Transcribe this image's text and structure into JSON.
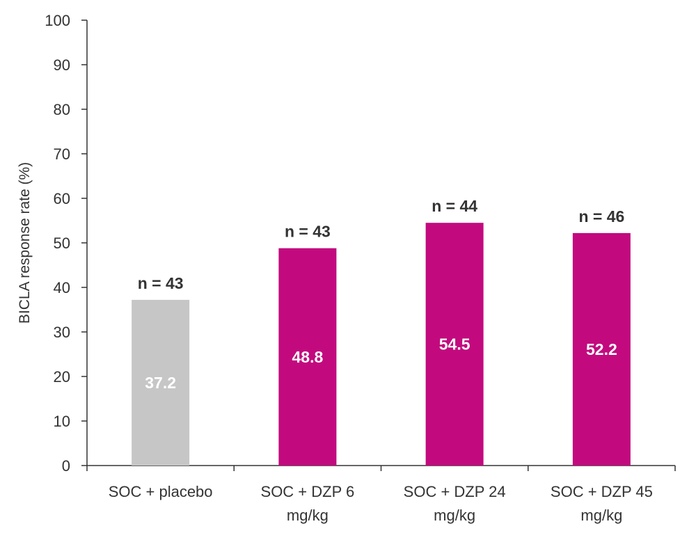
{
  "chart_data": {
    "type": "bar",
    "title": "",
    "xlabel": "",
    "ylabel": "BICLA response rate (%)",
    "ylim": [
      0,
      100
    ],
    "yticks": [
      0,
      10,
      20,
      30,
      40,
      50,
      60,
      70,
      80,
      90,
      100
    ],
    "grid": false,
    "categories": [
      [
        "SOC + placebo"
      ],
      [
        "SOC + DZP 6",
        "mg/kg"
      ],
      [
        "SOC + DZP 24",
        "mg/kg"
      ],
      [
        "SOC + DZP 45",
        "mg/kg"
      ]
    ],
    "values": [
      37.2,
      48.8,
      54.5,
      52.2
    ],
    "value_labels": [
      "37.2",
      "48.8",
      "54.5",
      "52.2"
    ],
    "n_labels": [
      "n = 43",
      "n = 43",
      "n = 44",
      "n = 46"
    ],
    "colors": [
      "#c6c6c6",
      "#c20a7e",
      "#c20a7e",
      "#c20a7e"
    ],
    "axis_color": "#333333"
  }
}
